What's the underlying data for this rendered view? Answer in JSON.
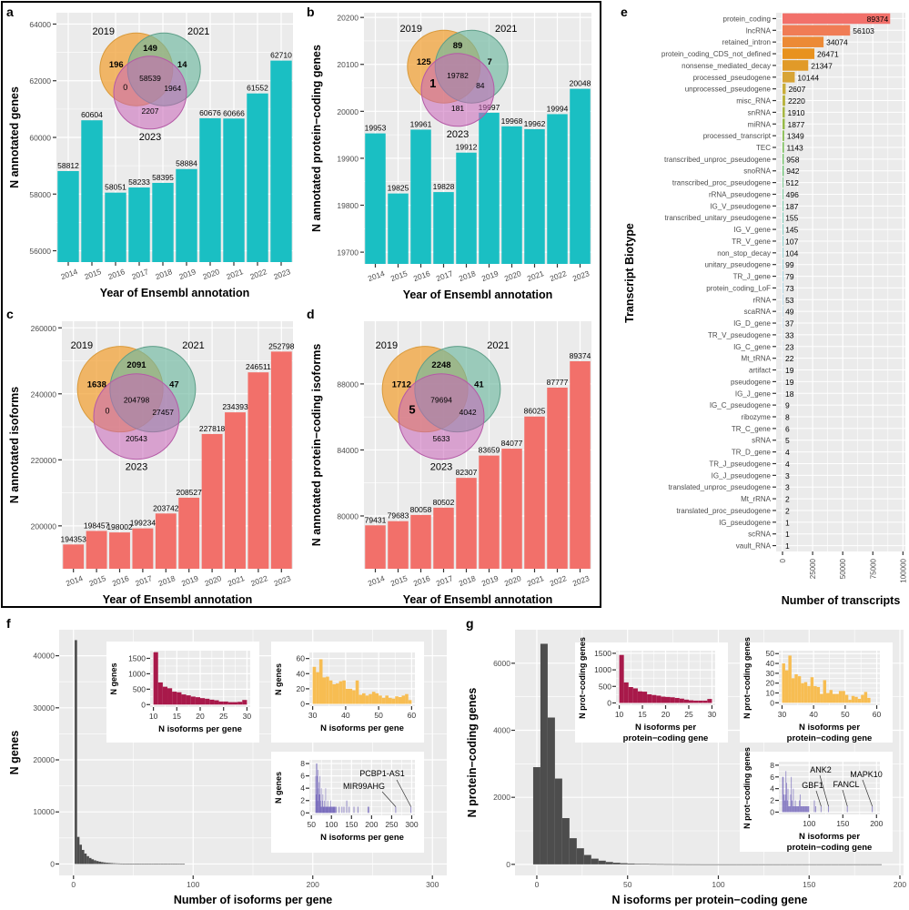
{
  "figure": {
    "panel_letters": [
      "a",
      "b",
      "c",
      "d",
      "e",
      "f",
      "g"
    ]
  },
  "colors": {
    "panel_bg": "#EBEBEB",
    "grid": "#FFFFFF",
    "teal_bar": "#1ABFC3",
    "salmon_bar": "#F2706A",
    "dark_hist": "#4D4D4D",
    "inset_red": "#A8194A",
    "inset_yellow": "#F7BD52",
    "inset_purple": "#5B4CB0",
    "venn_2019": "#F2A33A",
    "venn_2021": "#6FB8A0",
    "venn_2023": "#C865B8"
  },
  "chart_data": [
    {
      "id": "a",
      "type": "bar",
      "title": "",
      "xlabel": "Year of Ensembl annotation",
      "ylabel": "N annotated genes",
      "categories": [
        "2014",
        "2015",
        "2016",
        "2017",
        "2018",
        "2019",
        "2020",
        "2021",
        "2022",
        "2023"
      ],
      "values": [
        58812,
        60604,
        58051,
        58233,
        58395,
        58884,
        60676,
        60666,
        61552,
        62710
      ],
      "ylim": [
        55600,
        64400
      ],
      "yticks": [
        56000,
        58000,
        60000,
        62000,
        64000
      ],
      "color_key": "teal_bar",
      "venn": {
        "labels": [
          "2019",
          "2021",
          "2023"
        ],
        "only_2019": "196",
        "only_2021": "14",
        "only_2023": "2207",
        "2019_2021": "149",
        "2019_2023": "0",
        "2021_2023": "1964",
        "all": "58539"
      }
    },
    {
      "id": "b",
      "type": "bar",
      "title": "",
      "xlabel": "Year of Ensembl annotation",
      "ylabel": "N annotated protein−coding genes",
      "categories": [
        "2014",
        "2015",
        "2016",
        "2017",
        "2018",
        "2019",
        "2020",
        "2021",
        "2022",
        "2023"
      ],
      "values": [
        19953,
        19825,
        19961,
        19828,
        19912,
        19997,
        19968,
        19962,
        19994,
        20048
      ],
      "ylim": [
        19675,
        20210
      ],
      "yticks": [
        19700,
        19800,
        19900,
        20000,
        20100,
        20200
      ],
      "color_key": "teal_bar",
      "venn": {
        "labels": [
          "2019",
          "2021",
          "2023"
        ],
        "only_2019": "125",
        "only_2021": "7",
        "only_2023": "181",
        "2019_2021": "89",
        "2019_2023": "1",
        "2021_2023": "84",
        "all": "19782"
      }
    },
    {
      "id": "c",
      "type": "bar",
      "title": "",
      "xlabel": "Year of Ensembl annotation",
      "ylabel": "N annotated isoforms",
      "categories": [
        "2014",
        "2015",
        "2016",
        "2017",
        "2018",
        "2019",
        "2020",
        "2021",
        "2022",
        "2023"
      ],
      "values": [
        194353,
        198457,
        198002,
        199234,
        203742,
        208527,
        227818,
        234393,
        246511,
        252798
      ],
      "ylim": [
        187000,
        262000
      ],
      "yticks": [
        200000,
        220000,
        240000,
        260000
      ],
      "color_key": "salmon_bar",
      "venn": {
        "labels": [
          "2019",
          "2021",
          "2023"
        ],
        "only_2019": "1638",
        "only_2021": "47",
        "only_2023": "20543",
        "2019_2021": "2091",
        "2019_2023": "0",
        "2021_2023": "27457",
        "all": "204798"
      }
    },
    {
      "id": "d",
      "type": "bar",
      "title": "",
      "xlabel": "Year of Ensembl annotation",
      "ylabel": "N annotated protein−coding isoforms",
      "categories": [
        "2014",
        "2015",
        "2016",
        "2017",
        "2018",
        "2019",
        "2020",
        "2021",
        "2022",
        "2023"
      ],
      "values": [
        79431,
        79683,
        80058,
        80502,
        82307,
        83659,
        84077,
        86025,
        87777,
        89374
      ],
      "ylim": [
        76800,
        91800
      ],
      "yticks": [
        80000,
        84000,
        88000
      ],
      "color_key": "salmon_bar",
      "venn": {
        "labels": [
          "2019",
          "2021",
          "2023"
        ],
        "only_2019": "1712",
        "only_2021": "41",
        "only_2023": "5633",
        "2019_2021": "2248",
        "2019_2023": "5",
        "2021_2023": "4042",
        "all": "79694"
      }
    },
    {
      "id": "e",
      "type": "bar",
      "orientation": "horizontal",
      "title": "",
      "xlabel": "Number of transcripts",
      "ylabel": "Transcript Biotype",
      "xlim": [
        0,
        102000
      ],
      "xticks": [
        0,
        25000,
        50000,
        75000,
        100000
      ],
      "categories": [
        "protein_coding",
        "lncRNA",
        "retained_intron",
        "protein_coding_CDS_not_defined",
        "nonsense_mediated_decay",
        "processed_pseudogene",
        "unprocessed_pseudogene",
        "misc_RNA",
        "snRNA",
        "miRNA",
        "processed_transcript",
        "TEC",
        "transcribed_unproc_pseudogene",
        "snoRNA",
        "transcribed_proc_pseudogene",
        "rRNA_pseudogene",
        "IG_V_pseudogene",
        "transcribed_unitary_pseudogene",
        "IG_V_gene",
        "TR_V_gene",
        "non_stop_decay",
        "unitary_pseudogene",
        "TR_J_gene",
        "protein_coding_LoF",
        "rRNA",
        "scaRNA",
        "IG_D_gene",
        "TR_V_pseudogene",
        "IG_C_gene",
        "Mt_tRNA",
        "artifact",
        "pseudogene",
        "IG_J_gene",
        "IG_C_pseudogene",
        "ribozyme",
        "TR_C_gene",
        "sRNA",
        "TR_D_gene",
        "TR_J_pseudogene",
        "IG_J_pseudogene",
        "translated_unproc_pseudogene",
        "Mt_rRNA",
        "translated_proc_pseudogene",
        "IG_pseudogene",
        "scRNA",
        "vault_RNA"
      ],
      "values": [
        89374,
        56103,
        34074,
        26471,
        21347,
        10144,
        2607,
        2220,
        1910,
        1877,
        1349,
        1143,
        958,
        942,
        512,
        496,
        187,
        155,
        145,
        107,
        104,
        99,
        79,
        73,
        53,
        49,
        37,
        33,
        23,
        22,
        19,
        19,
        18,
        9,
        8,
        6,
        5,
        4,
        4,
        3,
        3,
        2,
        2,
        1,
        1,
        1
      ],
      "bar_colors": [
        "#F2706A",
        "#F07C55",
        "#EC8A36",
        "#E8921E",
        "#E19A28",
        "#D8A436",
        "#C9AD3A",
        "#B8B33E",
        "#A7B743",
        "#96BA48",
        "#86BC4E",
        "#76BE55",
        "#69BF5E",
        "#62C06B",
        "#5FC17A",
        "#5DC28A",
        "#5DC29A",
        "#60C3A9",
        "#65C4B6",
        "#6DC6C2",
        "#78C8CC",
        "#84CAD4",
        "#90CDDB",
        "#9DD0E1",
        "#AAD3E6",
        "#B6D7EA",
        "#C2DBED",
        "#CDDFEF",
        "#D7E3F1",
        "#DFE6F2",
        "#E5E9F3",
        "#EAECF3",
        "#EEEEF4",
        "#F0F0F4",
        "#F1F1F4",
        "#F2F2F4",
        "#F3F3F4",
        "#F3F3F4",
        "#F4F4F4",
        "#F4F4F4",
        "#F4F4F4",
        "#F4F4F4",
        "#F4F4F4",
        "#F4F4F4",
        "#F4F4F4",
        "#F4F4F4"
      ]
    },
    {
      "id": "f",
      "type": "bar",
      "subtype": "histogram",
      "title": "",
      "xlabel": "Number of isoforms per gene",
      "ylabel": "N genes",
      "xlim": [
        -12,
        312
      ],
      "ylim": [
        -2200,
        45000
      ],
      "xticks": [
        0,
        100,
        200,
        300
      ],
      "yticks": [
        0,
        10000,
        20000,
        30000,
        40000
      ],
      "bin_width": 2,
      "bins_start": 1,
      "values": [
        43000,
        5200,
        3700,
        2700,
        2000,
        1500,
        1150,
        900,
        700,
        560,
        450,
        360,
        290,
        240,
        200,
        165,
        135,
        110,
        92,
        78,
        64,
        54,
        45,
        38,
        33,
        28,
        24,
        21,
        18,
        15,
        13,
        11,
        9,
        8,
        7,
        6,
        5,
        4,
        4,
        3,
        3,
        2,
        2,
        2,
        1,
        1
      ],
      "insets": [
        {
          "id": "f1",
          "type": "bar",
          "subtype": "histogram",
          "color_key": "inset_red",
          "xlabel": "N isoforms per gene",
          "ylabel": "N genes",
          "xlim": [
            9.3,
            30.7
          ],
          "ylim": [
            -80,
            1750
          ],
          "xticks": [
            10,
            15,
            20,
            25,
            30
          ],
          "yticks": [
            0,
            500,
            1000,
            1500
          ],
          "bins_start": 10,
          "bin_width": 1,
          "values": [
            1700,
            720,
            580,
            530,
            420,
            400,
            330,
            300,
            260,
            240,
            210,
            190,
            160,
            140,
            100,
            100,
            80,
            80,
            90,
            150
          ]
        },
        {
          "id": "f2",
          "type": "bar",
          "subtype": "histogram",
          "color_key": "inset_yellow",
          "xlabel": "N isoforms per gene",
          "ylabel": "N genes",
          "xlim": [
            29,
            61
          ],
          "ylim": [
            -3,
            68
          ],
          "xticks": [
            30,
            40,
            50,
            60
          ],
          "yticks": [
            0,
            20,
            40,
            60
          ],
          "bins_start": 30,
          "bin_width": 1,
          "values": [
            49,
            42,
            59,
            35,
            36,
            31,
            26,
            27,
            30,
            31,
            20,
            20,
            18,
            31,
            12,
            14,
            11,
            13,
            16,
            14,
            11,
            8,
            11,
            8,
            7,
            10,
            9,
            11,
            13,
            5
          ]
        },
        {
          "id": "f3",
          "type": "bar",
          "subtype": "histogram",
          "color_key": "inset_purple",
          "xlabel": "N isoforms per gene",
          "ylabel": "N genes",
          "xlim": [
            45,
            308
          ],
          "ylim": [
            -0.4,
            8.6
          ],
          "xticks": [
            50,
            100,
            150,
            200,
            250,
            300
          ],
          "yticks": [
            0,
            2,
            4,
            6,
            8
          ],
          "bins_start": 60,
          "bin_width": 1,
          "values": [
            6,
            8,
            3,
            6,
            8,
            2,
            7,
            4,
            5,
            3,
            3,
            6,
            1,
            2,
            4,
            1,
            1,
            2,
            3,
            1,
            1,
            1,
            2,
            1,
            1,
            4,
            1,
            1,
            1,
            1,
            2,
            1,
            1,
            1,
            1,
            1,
            1,
            1,
            2,
            1,
            1,
            1,
            1,
            1,
            1,
            1,
            1,
            1,
            1,
            1
          ],
          "sparse_points": [
            [
              111,
              1
            ],
            [
              118,
              1
            ],
            [
              125,
              1
            ],
            [
              130,
              1
            ],
            [
              137,
              2
            ],
            [
              143,
              1
            ],
            [
              155,
              1
            ],
            [
              165,
              1
            ],
            [
              190,
              1
            ],
            [
              192,
              1
            ],
            [
              259,
              1
            ],
            [
              297,
              1
            ]
          ],
          "annotations": [
            {
              "label": "MIR99AHG",
              "x": 259
            },
            {
              "label": "PCBP1-AS1",
              "x": 297
            }
          ]
        }
      ]
    },
    {
      "id": "g",
      "type": "bar",
      "subtype": "histogram",
      "title": "",
      "xlabel": "N isoforms per protein−coding gene",
      "ylabel": "N protein−coding genes",
      "xlim": [
        -12,
        202
      ],
      "ylim": [
        -330,
        7000
      ],
      "xticks": [
        0,
        50,
        100,
        150,
        200
      ],
      "yticks": [
        0,
        2000,
        4000,
        6000
      ],
      "bin_width": 4,
      "bins_start": -2,
      "values": [
        2900,
        6580,
        4380,
        2560,
        1380,
        780,
        480,
        280,
        170,
        110,
        70,
        48,
        34,
        24,
        17,
        12,
        9,
        7,
        5,
        4,
        3,
        2,
        2,
        1,
        1,
        1,
        1,
        1,
        1,
        1,
        1,
        1,
        1,
        1,
        1,
        1,
        1,
        1,
        1,
        1,
        1,
        1,
        1,
        1,
        1,
        1,
        1,
        1
      ],
      "insets": [
        {
          "id": "g1",
          "type": "bar",
          "subtype": "histogram",
          "color_key": "inset_red",
          "xlabel": "N isoforms per\nprotein−coding gene",
          "ylabel": "N prot−coding genes",
          "xlim": [
            9.3,
            30.7
          ],
          "ylim": [
            -70,
            1580
          ],
          "xticks": [
            10,
            15,
            20,
            25,
            30
          ],
          "yticks": [
            0,
            500,
            1000,
            1500
          ],
          "bins_start": 10,
          "bin_width": 1,
          "values": [
            1450,
            620,
            480,
            440,
            350,
            340,
            260,
            240,
            220,
            190,
            180,
            170,
            150,
            130,
            100,
            80,
            70,
            70,
            70,
            120
          ]
        },
        {
          "id": "g2",
          "type": "bar",
          "subtype": "histogram",
          "color_key": "inset_yellow",
          "xlabel": "N isoforms per\nprotein−coding gene",
          "ylabel": "N prot−coding genes",
          "xlim": [
            29,
            61
          ],
          "ylim": [
            -2.5,
            53
          ],
          "xticks": [
            30,
            40,
            50,
            60
          ],
          "yticks": [
            0,
            10,
            20,
            30,
            40,
            50
          ],
          "bins_start": 30,
          "bin_width": 1,
          "values": [
            40,
            33,
            48,
            25,
            29,
            27,
            20,
            21,
            17,
            26,
            17,
            16,
            9,
            23,
            10,
            13,
            9,
            9,
            12,
            12,
            8,
            3,
            7,
            6,
            4,
            8,
            11,
            5,
            0,
            0
          ]
        },
        {
          "id": "g3",
          "type": "bar",
          "subtype": "histogram",
          "color_key": "inset_purple",
          "xlabel": "N isoforms per\nprotein−coding gene",
          "ylabel": "N prot−coding genes",
          "xlim": [
            55,
            205
          ],
          "ylim": [
            -0.4,
            8.6
          ],
          "xticks": [
            100,
            150,
            200
          ],
          "yticks": [
            0,
            2,
            4,
            6,
            8
          ],
          "bins_start": 60,
          "bin_width": 1,
          "values": [
            6,
            6,
            3,
            2,
            3,
            7,
            5,
            2,
            4,
            1,
            1,
            1,
            3,
            6,
            2,
            1,
            4,
            1,
            1,
            2,
            1,
            1,
            1,
            1,
            1,
            2,
            3,
            1,
            1,
            1,
            1,
            1,
            1,
            1,
            1,
            1,
            1,
            1,
            1,
            1
          ],
          "sparse_points": [
            [
              107,
              2
            ],
            [
              109,
              1
            ],
            [
              117,
              1
            ],
            [
              128,
              1
            ],
            [
              156,
              1
            ],
            [
              193,
              1
            ]
          ],
          "annotations": [
            {
              "label": "GBF1",
              "x": 117
            },
            {
              "label": "ANK2",
              "x": 128
            },
            {
              "label": "FANCL",
              "x": 156
            },
            {
              "label": "MAPK10",
              "x": 193
            }
          ]
        }
      ]
    }
  ]
}
